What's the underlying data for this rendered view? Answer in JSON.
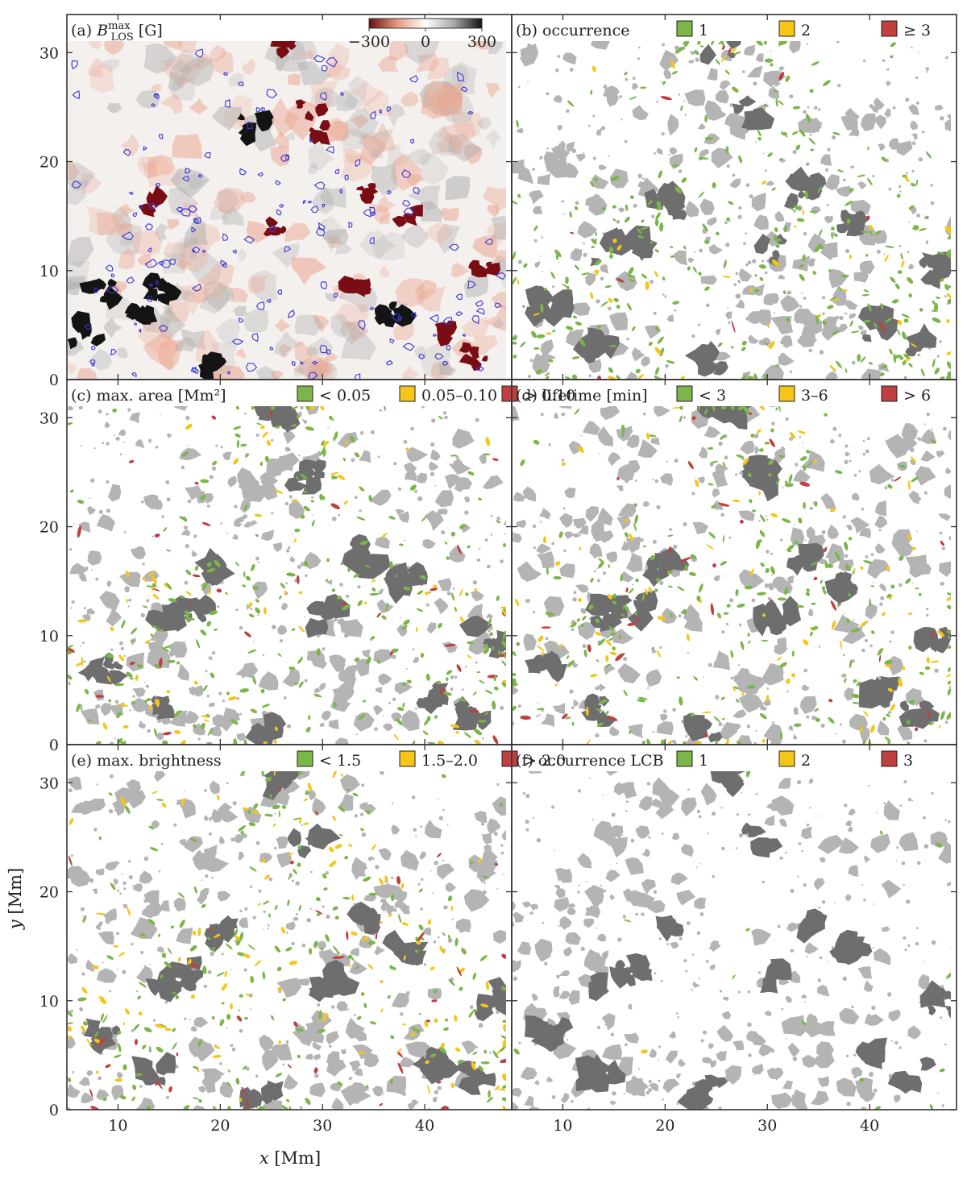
{
  "figure": {
    "xlabel_var": "x",
    "xlabel_unit": "[Mm]",
    "ylabel_var": "y",
    "ylabel_unit": "[Mm]"
  },
  "colors": {
    "green": "#7ab648",
    "yellow": "#f5c518",
    "red": "#c04040",
    "gray_dark": "#6e6e6e",
    "gray_light": "#b4b4b4",
    "contour_blue": "#3a36d8"
  },
  "chart_data": [
    {
      "type": "heatmap",
      "panel": "a",
      "label_prefix": "(a)",
      "label_var": "B",
      "label_sup": "max",
      "label_sub": "LOS",
      "label_unit": "[G]",
      "colorbar": {
        "ticks": [
          "−300",
          "0",
          "300"
        ],
        "values": [
          -300,
          0,
          300
        ],
        "cmap": "red-white-black"
      },
      "contour": "blue",
      "xlim": [
        5,
        48.5
      ],
      "ylim": [
        0,
        33.5
      ],
      "xticks": [
        10,
        20,
        30,
        40
      ],
      "yticks": [
        0,
        10,
        20,
        30
      ],
      "xtick_labels": [],
      "ytick_labels": [
        "0",
        "10",
        "20",
        "30"
      ],
      "legend": []
    },
    {
      "type": "heatmap",
      "panel": "b",
      "label_prefix": "(b)",
      "label": "occurrence",
      "xlim": [
        5,
        48.5
      ],
      "ylim": [
        0,
        33.5
      ],
      "xticks": [
        10,
        20,
        30,
        40
      ],
      "yticks": [
        0,
        10,
        20,
        30
      ],
      "xtick_labels": [],
      "ytick_labels": [],
      "legend": [
        {
          "label": "1",
          "color": "green"
        },
        {
          "label": "2",
          "color": "yellow"
        },
        {
          "label": "≥ 3",
          "color": "red"
        }
      ],
      "class_weights": [
        0.82,
        0.14,
        0.04
      ]
    },
    {
      "type": "heatmap",
      "panel": "c",
      "label_prefix": "(c)",
      "label": "max. area [Mm²]",
      "xlim": [
        5,
        48.5
      ],
      "ylim": [
        0,
        33.5
      ],
      "xticks": [
        10,
        20,
        30,
        40
      ],
      "yticks": [
        0,
        10,
        20,
        30
      ],
      "xtick_labels": [],
      "ytick_labels": [
        "0",
        "10",
        "20",
        "30"
      ],
      "legend": [
        {
          "label": "< 0.05",
          "color": "green"
        },
        {
          "label": "0.05–0.10",
          "color": "yellow"
        },
        {
          "label": "> 0.10",
          "color": "red"
        }
      ],
      "class_weights": [
        0.66,
        0.24,
        0.1
      ]
    },
    {
      "type": "heatmap",
      "panel": "d",
      "label_prefix": "(d)",
      "label": "lifetime [min]",
      "xlim": [
        5,
        48.5
      ],
      "ylim": [
        0,
        33.5
      ],
      "xticks": [
        10,
        20,
        30,
        40
      ],
      "yticks": [
        0,
        10,
        20,
        30
      ],
      "xtick_labels": [],
      "ytick_labels": [],
      "legend": [
        {
          "label": "< 3",
          "color": "green"
        },
        {
          "label": "3–6",
          "color": "yellow"
        },
        {
          "label": "> 6",
          "color": "red"
        }
      ],
      "class_weights": [
        0.68,
        0.22,
        0.1
      ]
    },
    {
      "type": "heatmap",
      "panel": "e",
      "label_prefix": "(e)",
      "label": "max. brightness",
      "xlim": [
        5,
        48.5
      ],
      "ylim": [
        0,
        33.5
      ],
      "xticks": [
        10,
        20,
        30,
        40
      ],
      "yticks": [
        0,
        10,
        20,
        30
      ],
      "xtick_labels": [
        "10",
        "20",
        "30",
        "40"
      ],
      "ytick_labels": [
        "0",
        "10",
        "20",
        "30"
      ],
      "legend": [
        {
          "label": "< 1.5",
          "color": "green"
        },
        {
          "label": "1.5–2.0",
          "color": "yellow"
        },
        {
          "label": "> 2.0",
          "color": "red"
        }
      ],
      "class_weights": [
        0.56,
        0.34,
        0.1
      ]
    },
    {
      "type": "heatmap",
      "panel": "f",
      "label_prefix": "(f)",
      "label": "occurrence LCB",
      "xlim": [
        5,
        48.5
      ],
      "ylim": [
        0,
        33.5
      ],
      "xticks": [
        10,
        20,
        30,
        40
      ],
      "yticks": [
        0,
        10,
        20,
        30
      ],
      "xtick_labels": [
        "10",
        "20",
        "30",
        "40"
      ],
      "ytick_labels": [],
      "legend": [
        {
          "label": "1",
          "color": "green"
        },
        {
          "label": "2",
          "color": "yellow"
        },
        {
          "label": "3",
          "color": "red"
        }
      ],
      "class_weights": [
        0.96,
        0.04,
        0.0
      ],
      "sparse": true
    }
  ]
}
